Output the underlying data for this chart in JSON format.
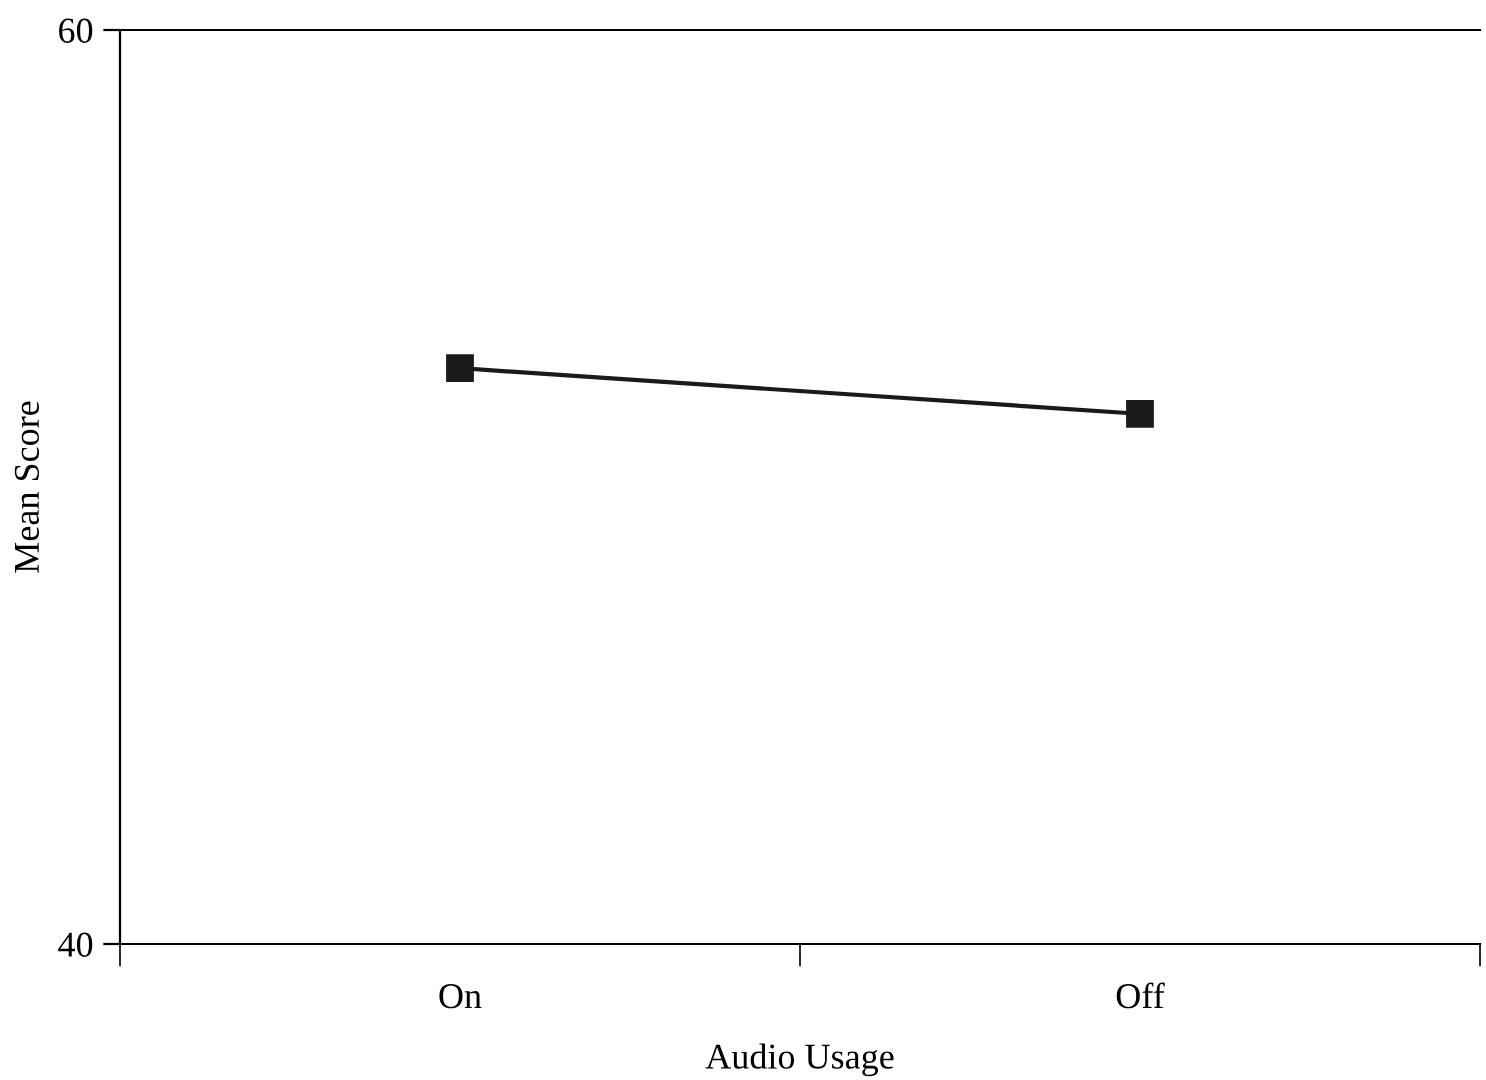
{
  "chart_data": {
    "type": "line",
    "xlabel": "Audio Usage",
    "ylabel": "Mean Score",
    "categories": [
      "On",
      "Off"
    ],
    "series": [
      {
        "color": "#1a1a1a",
        "values": [
          52.6,
          51.6
        ]
      }
    ],
    "ylim": [
      40,
      60
    ],
    "yticks": [
      40,
      60
    ],
    "grid": false,
    "legend": false,
    "marker": "square",
    "line_style": "solid"
  }
}
